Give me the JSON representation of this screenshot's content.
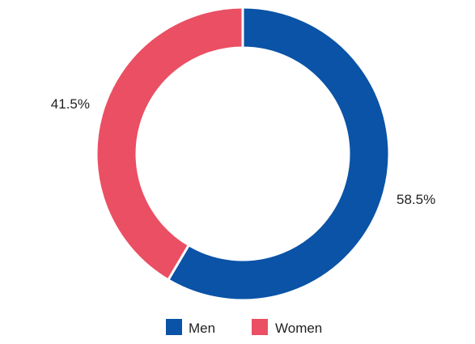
{
  "chart_data": {
    "type": "pie",
    "donut": true,
    "title": "",
    "slices": [
      {
        "name": "Men",
        "value": 58.5,
        "label": "58.5%",
        "color": "#0a53a6"
      },
      {
        "name": "Women",
        "value": 41.5,
        "label": "41.5%",
        "color": "#ea4f63"
      }
    ],
    "start_angle_deg": 0,
    "direction": "clockwise",
    "legend_placement": "bottom",
    "legend": [
      {
        "name": "Men",
        "color": "#0a53a6"
      },
      {
        "name": "Women",
        "color": "#ea4f63"
      }
    ]
  }
}
